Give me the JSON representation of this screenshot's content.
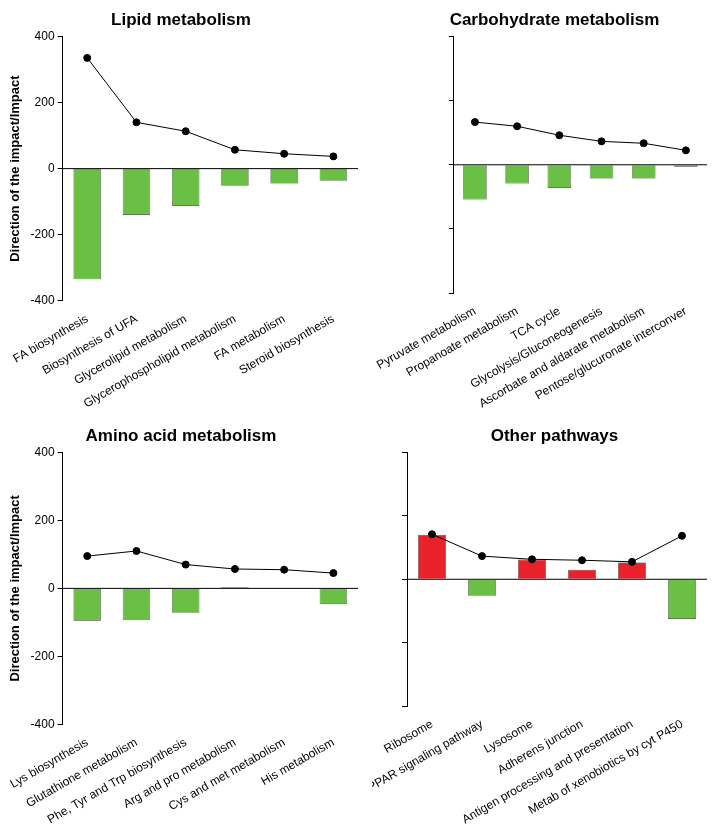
{
  "chart_data": [
    {
      "type": "bar",
      "title": "Lipid metabolism",
      "y_label": "Direction of the impact/Impact",
      "categories": [
        "FA biosynthesis",
        "Biosynthesis of UFA",
        "Glycerolipid metabolism",
        "Glycerophospholipid metabolism",
        "FA metabolism",
        "Steroid biosynthesis"
      ],
      "series": [
        {
          "type": "bar",
          "values": [
            -335,
            -140,
            -113,
            -52,
            -45,
            -37
          ],
          "colors": [
            "#6abf45",
            "#6abf45",
            "#6abf45",
            "#6abf45",
            "#6abf45",
            "#6abf45"
          ]
        },
        {
          "type": "line",
          "values": [
            335,
            140,
            113,
            57,
            45,
            37
          ],
          "color": "#000000",
          "marker": "circle"
        }
      ],
      "ylim": [
        -400,
        400
      ],
      "yticks": [
        -400,
        -200,
        0,
        200,
        400
      ],
      "grid": false
    },
    {
      "type": "bar",
      "title": "Carbohydrate metabolism",
      "categories": [
        "Pyruvate metabolism",
        "Propanoate metabolism",
        "TCA cycle",
        "Glycolysis/Gluconeogenesis",
        "Ascorbate and aldarate metabolism",
        "Pentose/glucuronate interconver"
      ],
      "series": [
        {
          "type": "bar",
          "values": [
            -108,
            -58,
            -72,
            -43,
            -43,
            -6
          ],
          "colors": [
            "#6abf45",
            "#6abf45",
            "#6abf45",
            "#6abf45",
            "#6abf45",
            "#6abf45"
          ]
        },
        {
          "type": "line",
          "values": [
            133,
            120,
            92,
            73,
            67,
            45
          ],
          "color": "#000000",
          "marker": "circle"
        }
      ],
      "ylim": [
        -400,
        400
      ],
      "yticks": [
        -400,
        -200,
        0,
        200,
        400
      ],
      "grid": false,
      "tick_labels": "x"
    },
    {
      "type": "bar",
      "title": "Amino acid metabolism",
      "y_label": "Direction of the impact/Impact",
      "categories": [
        "Lys biosynthesis",
        "Glutathione metabolism",
        "Phe, Tyr and Trp biosynthesis",
        "Arg and pro metabolism",
        "Cys and met metabolism",
        "His metabolism"
      ],
      "series": [
        {
          "type": "bar",
          "values": [
            -95,
            -93,
            -72,
            3,
            0,
            -45
          ],
          "colors": [
            "#6abf45",
            "#6abf45",
            "#6abf45",
            "#6abf45",
            "#6abf45",
            "#6abf45"
          ]
        },
        {
          "type": "line",
          "values": [
            95,
            110,
            70,
            57,
            55,
            45
          ],
          "color": "#000000",
          "marker": "circle"
        }
      ],
      "ylim": [
        -400,
        400
      ],
      "yticks": [
        -400,
        -200,
        0,
        200,
        400
      ],
      "grid": false
    },
    {
      "type": "bar",
      "title": "Other pathways",
      "categories": [
        "Ribosome",
        "PPAR signaling pathway",
        "Lysosome",
        "Adherens junction",
        "Antigen processing and presentation",
        "Metab of xenobiotics by cyt P450"
      ],
      "series": [
        {
          "type": "bar",
          "values": [
            140,
            -52,
            62,
            30,
            53,
            -125
          ],
          "colors": [
            "#e8212b",
            "#6abf45",
            "#e8212b",
            "#e8212b",
            "#e8212b",
            "#6abf45"
          ]
        },
        {
          "type": "line",
          "values": [
            142,
            73,
            63,
            60,
            55,
            137
          ],
          "color": "#000000",
          "marker": "circle"
        }
      ],
      "ylim": [
        -400,
        400
      ],
      "yticks": [
        -400,
        -200,
        0,
        200,
        400
      ],
      "grid": false,
      "tick_labels": "x"
    }
  ]
}
